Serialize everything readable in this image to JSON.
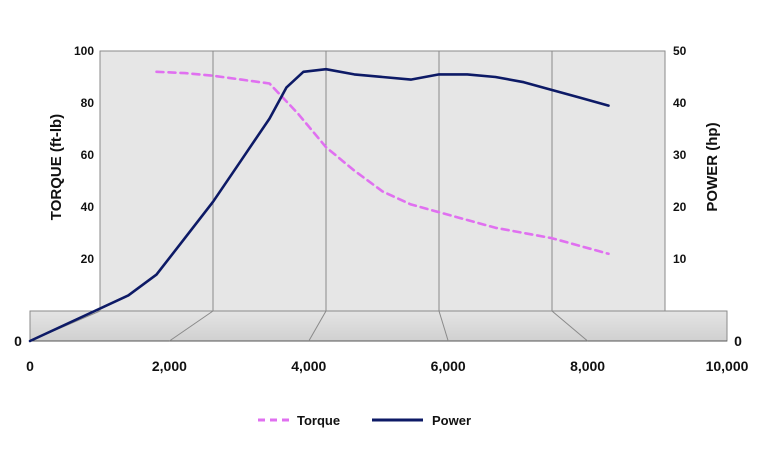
{
  "chart_data": {
    "type": "line",
    "x": [
      0,
      500,
      1000,
      1500,
      2000,
      2500,
      3000,
      3500,
      4000,
      4500,
      5000,
      5500,
      6000,
      6500,
      7000,
      7500,
      8000,
      8500,
      9000
    ],
    "xlim": [
      0,
      10000
    ],
    "x_ticks": [
      "0",
      "2,000",
      "4,000",
      "6,000",
      "8,000",
      "10,000"
    ],
    "ylabel_left": "TORQUE (ft-lb)",
    "ylabel_right": "POWER (hp)",
    "ylim_left": [
      0,
      100
    ],
    "ylim_right": [
      0,
      50
    ],
    "y_ticks_left": [
      "0",
      "20",
      "40",
      "60",
      "80",
      "100"
    ],
    "y_ticks_right": [
      "0",
      "10",
      "20",
      "30",
      "40",
      "50"
    ],
    "grid": true,
    "legend_position": "bottom",
    "series": [
      {
        "name": "Torque",
        "axis": "left",
        "style": "dashed",
        "color": "#e070f0",
        "x": [
          1000,
          1500,
          2000,
          2500,
          3000,
          3500,
          4000,
          4500,
          5000,
          5500,
          6000,
          6500,
          7000,
          7500,
          8000,
          8500,
          9000
        ],
        "values": [
          92,
          91.5,
          90.5,
          89,
          87.5,
          76,
          63,
          54,
          46,
          41,
          38,
          35,
          32,
          30,
          28,
          25,
          22
        ]
      },
      {
        "name": "Power",
        "axis": "right",
        "style": "solid",
        "color": "#0d1a66",
        "x": [
          0,
          500,
          1000,
          1500,
          2000,
          2500,
          3000,
          3300,
          3600,
          4000,
          4500,
          5000,
          5500,
          6000,
          6500,
          7000,
          7500,
          8000,
          8500,
          9000
        ],
        "values": [
          0,
          3,
          7,
          14,
          21,
          29,
          37,
          43,
          46,
          46.5,
          45.5,
          45,
          44.5,
          45.5,
          45.5,
          45,
          44,
          42.5,
          41,
          39.5
        ]
      }
    ]
  }
}
